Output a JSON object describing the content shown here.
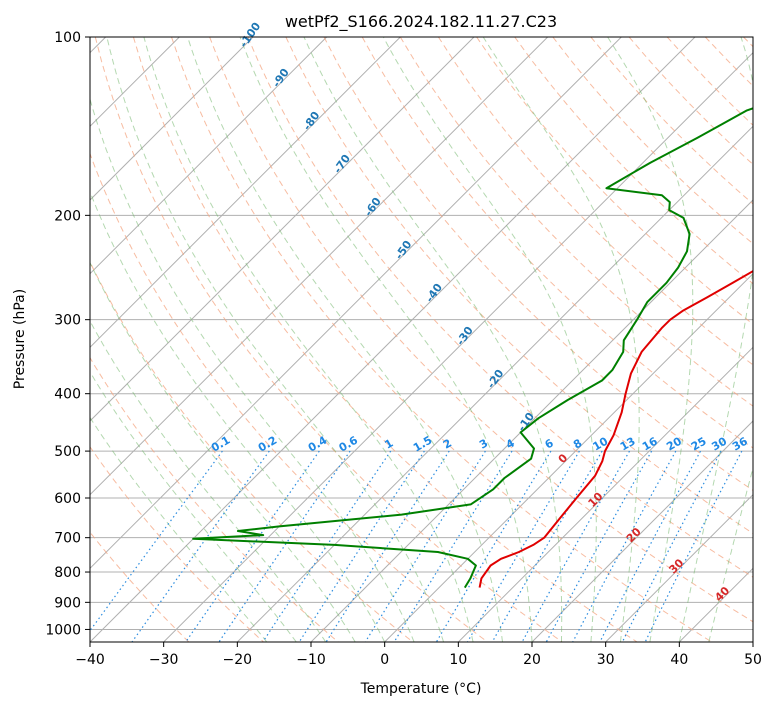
{
  "chart_data": {
    "type": "line",
    "title": "wetPf2_S166.2024.182.11.27.C23",
    "xlabel": "Temperature (°C)",
    "ylabel": "Pressure (hPa)",
    "xlim": [
      -40,
      50
    ],
    "ylim": [
      1050,
      100
    ],
    "y_scale": "log",
    "x_ticks": [
      -40,
      -30,
      -20,
      -10,
      0,
      10,
      20,
      30,
      40,
      50
    ],
    "y_ticks": [
      100,
      200,
      300,
      400,
      500,
      600,
      700,
      800,
      900,
      1000
    ],
    "grid": true,
    "series": [
      {
        "color": "#e00000",
        "points": [
          [
            5.5,
            850
          ],
          [
            4.5,
            820
          ],
          [
            4,
            780
          ],
          [
            4.5,
            760
          ],
          [
            6,
            740
          ],
          [
            7,
            720
          ],
          [
            7.5,
            700
          ],
          [
            7,
            650
          ],
          [
            6.5,
            600
          ],
          [
            6,
            550
          ],
          [
            5,
            520
          ],
          [
            4,
            500
          ],
          [
            3,
            470
          ],
          [
            1,
            430
          ],
          [
            -1,
            400
          ],
          [
            -3,
            370
          ],
          [
            -4.5,
            340
          ],
          [
            -5,
            310
          ],
          [
            -5,
            300
          ],
          [
            -4.5,
            290
          ],
          [
            -3,
            275
          ],
          [
            -1.5,
            260
          ],
          [
            0,
            245
          ],
          [
            3,
            230
          ],
          [
            6,
            215
          ],
          [
            10,
            200
          ],
          [
            13,
            185
          ],
          [
            14,
            175
          ],
          [
            15.5,
            165
          ],
          [
            18,
            155
          ],
          [
            20,
            145
          ],
          [
            22,
            135
          ],
          [
            23.5,
            125
          ],
          [
            25,
            115
          ],
          [
            26,
            108
          ],
          [
            27,
            100
          ]
        ]
      },
      {
        "color": "#008000",
        "points": [
          [
            3.5,
            850
          ],
          [
            3,
            820
          ],
          [
            2.5,
            800
          ],
          [
            2,
            780
          ],
          [
            0,
            760
          ],
          [
            -5,
            740
          ],
          [
            -20,
            720
          ],
          [
            -40,
            703
          ],
          [
            -31,
            693
          ],
          [
            -35,
            682
          ],
          [
            -30,
            670
          ],
          [
            -15,
            640
          ],
          [
            -7,
            615
          ],
          [
            -6,
            580
          ],
          [
            -6,
            555
          ],
          [
            -5,
            515
          ],
          [
            -6,
            495
          ],
          [
            -10,
            465
          ],
          [
            -9.5,
            440
          ],
          [
            -8,
            410
          ],
          [
            -6,
            380
          ],
          [
            -6,
            365
          ],
          [
            -7,
            340
          ],
          [
            -8.5,
            325
          ],
          [
            -9.5,
            300
          ],
          [
            -10.5,
            280
          ],
          [
            -10.5,
            260
          ],
          [
            -11,
            245
          ],
          [
            -12,
            230
          ],
          [
            -14,
            215
          ],
          [
            -17,
            202
          ],
          [
            -20,
            196
          ],
          [
            -21,
            190
          ],
          [
            -23,
            185
          ],
          [
            -31.5,
            180
          ],
          [
            -29,
            163
          ],
          [
            -26,
            148
          ],
          [
            -23,
            133
          ],
          [
            -22,
            131
          ],
          [
            -19,
            129
          ],
          [
            -18,
            126
          ],
          [
            -18.5,
            123
          ],
          [
            -15,
            119
          ],
          [
            -11,
            113
          ],
          [
            -8,
            109
          ],
          [
            -6.5,
            104
          ],
          [
            -6.5,
            100
          ]
        ]
      }
    ],
    "dry_adiabat_labels": [
      "-100",
      "-90",
      "-80",
      "-70",
      "-60",
      "-50",
      "-40",
      "-30",
      "-20",
      "-10"
    ],
    "moist_adiabat_labels": [
      "0",
      "10",
      "20",
      "30",
      "40"
    ],
    "mixing_ratio_labels": [
      "0.1",
      "0.2",
      "0.4",
      "0.6",
      "1",
      "1.5",
      "2",
      "3",
      "4",
      "6",
      "8",
      "10",
      "13",
      "16",
      "20",
      "25",
      "30",
      "36"
    ]
  }
}
